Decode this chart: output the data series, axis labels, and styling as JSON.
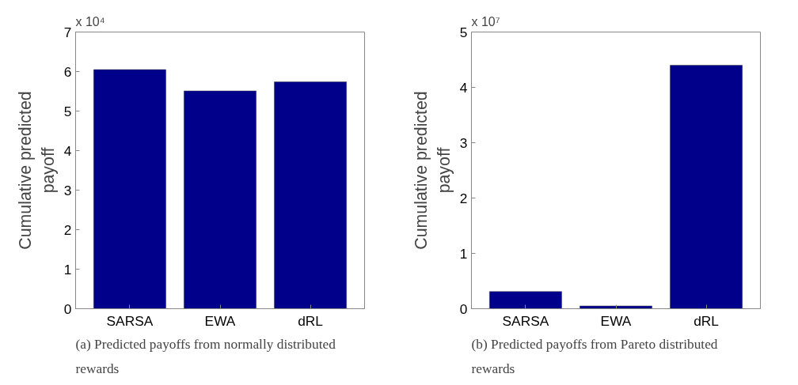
{
  "chart_data": [
    {
      "type": "bar",
      "categories": [
        "SARSA",
        "EWA",
        "dRL"
      ],
      "values": [
        6.05,
        5.51,
        5.74
      ],
      "color": "#00008b",
      "ylabel": "Cumulative predicted payoff",
      "ylim": [
        0,
        7
      ],
      "yticks": [
        0,
        1,
        2,
        3,
        4,
        5,
        6,
        7
      ],
      "annotations": [
        "x 10⁴",
        "(a) Predicted payoffs from normally distributed rewards"
      ],
      "grid": false
    },
    {
      "type": "bar",
      "categories": [
        "SARSA",
        "EWA",
        "dRL"
      ],
      "values": [
        0.31,
        0.05,
        4.4
      ],
      "color": "#00008b",
      "ylabel": "Cumulative predicted payoff",
      "ylim": [
        0,
        5
      ],
      "yticks": [
        0,
        1,
        2,
        3,
        4,
        5
      ],
      "annotations": [
        "x 10⁷",
        "(b) Predicted payoffs from Pareto distributed rewards"
      ],
      "grid": false
    }
  ]
}
